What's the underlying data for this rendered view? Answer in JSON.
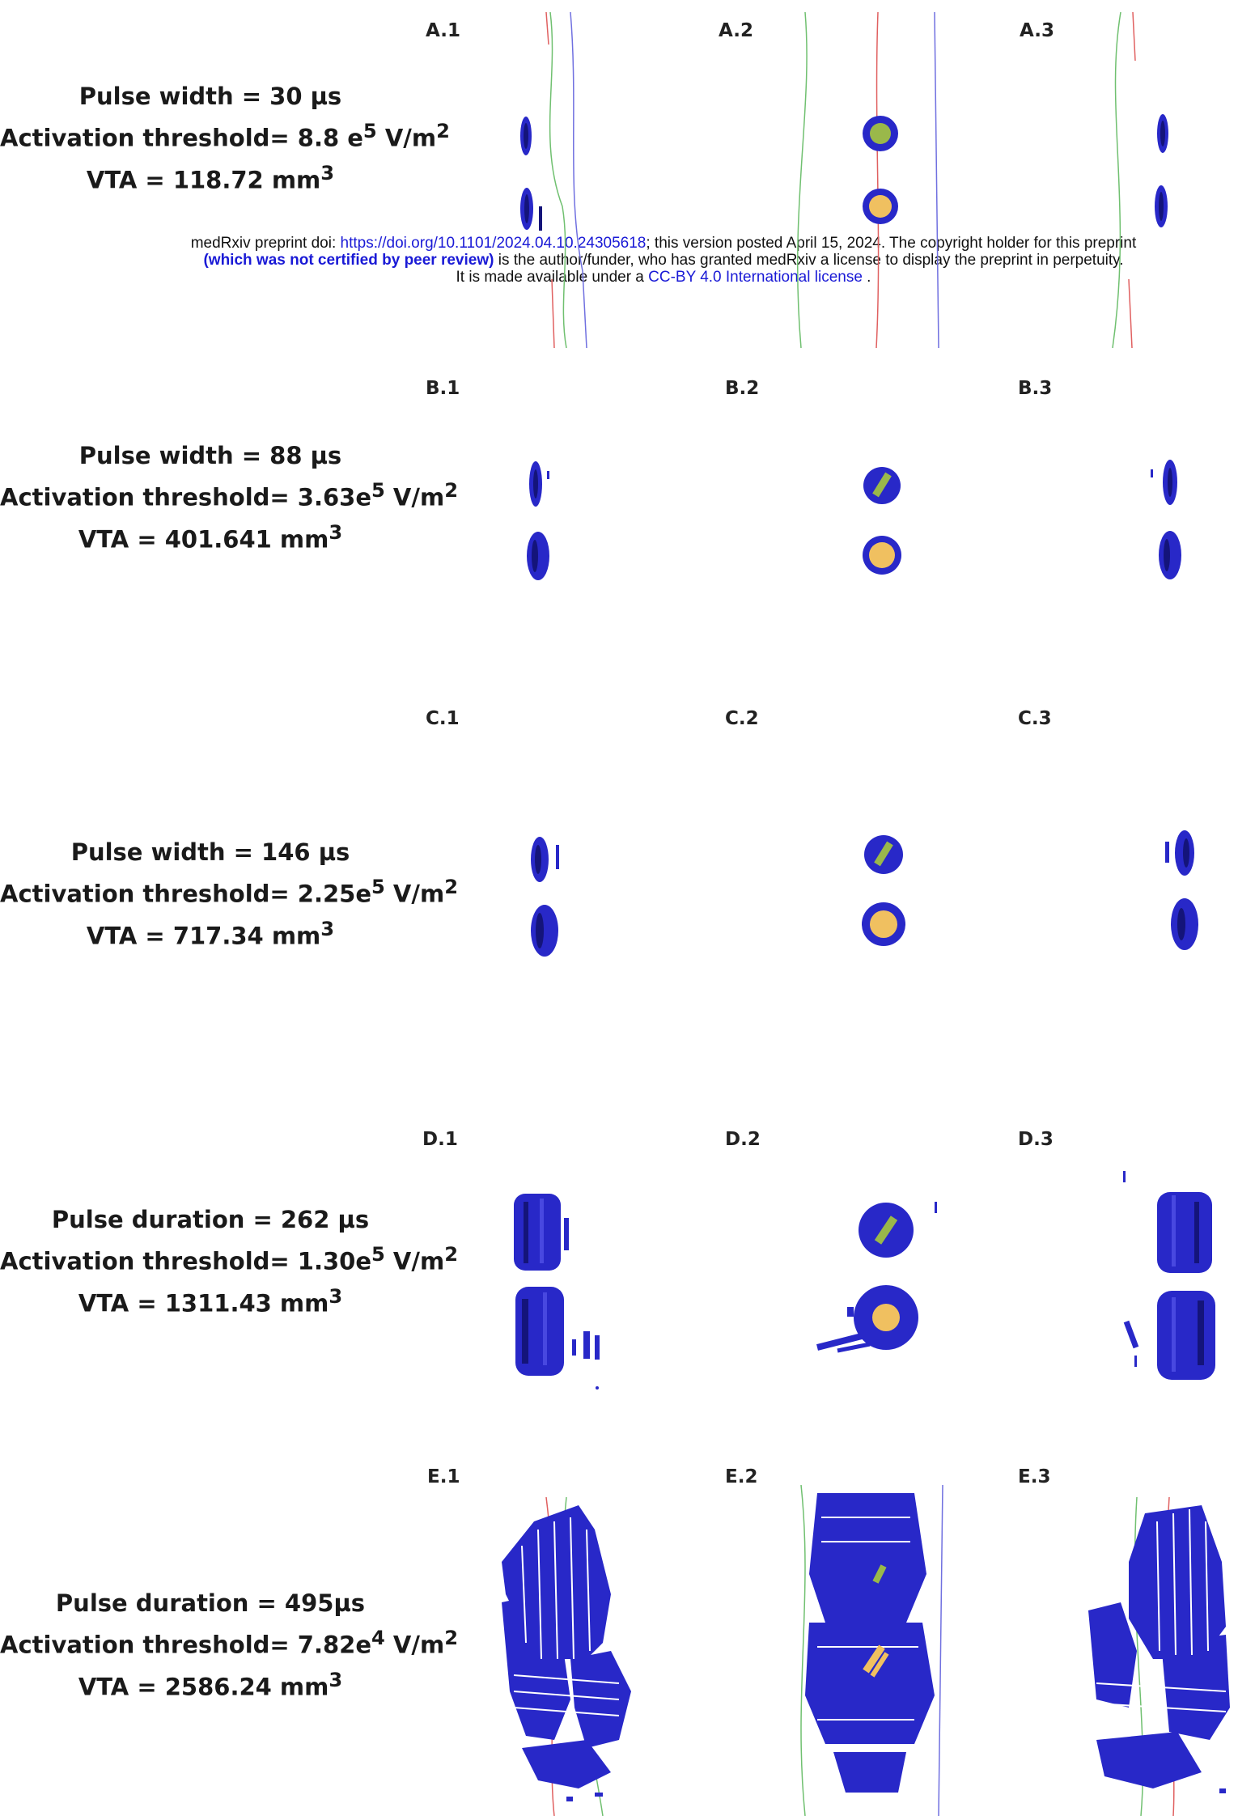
{
  "notice": {
    "line1_prefix": "medRxiv preprint doi: ",
    "line1_link": "https://doi.org/10.1101/2024.04.10.24305618",
    "line1_suffix": "; this version posted April 15, 2024. The copyright holder for this preprint",
    "line2_bold": "(which was not certified by peer review)",
    "line2_rest": " is the author/funder, who has granted medRxiv a license to display the preprint in perpetuity.",
    "line3_prefix": "It is made available under a ",
    "line3_link": "CC-BY 4.0 International license",
    "line3_suffix": " ."
  },
  "rows": [
    {
      "id": "A",
      "line1": "Pulse width = 30 µs",
      "line2_a": "Activation threshold= 8.8 e",
      "line2_exp": "5",
      "line2_b": " V/m",
      "line2_sq": "2",
      "line3_a": "VTA = 118.72 mm",
      "line3_sq": "3",
      "labels": [
        "A.1",
        "A.2",
        "A.3"
      ]
    },
    {
      "id": "B",
      "line1": "Pulse width = 88 µs",
      "line2_a": "Activation threshold= 3.63e",
      "line2_exp": "5",
      "line2_b": " V/m",
      "line2_sq": "2",
      "line3_a": "VTA = 401.641 mm",
      "line3_sq": "3",
      "labels": [
        "B.1",
        "B.2",
        "B.3"
      ]
    },
    {
      "id": "C",
      "line1": "Pulse width = 146 µs",
      "line2_a": "Activation threshold= 2.25e",
      "line2_exp": "5",
      "line2_b": " V/m",
      "line2_sq": "2",
      "line3_a": "VTA = 717.34 mm",
      "line3_sq": "3",
      "labels": [
        "C.1",
        "C.2",
        "C.3"
      ]
    },
    {
      "id": "D",
      "line1": "Pulse duration = 262 µs",
      "line2_a": "Activation threshold= 1.30e",
      "line2_exp": "5",
      "line2_b": " V/m",
      "line2_sq": "2",
      "line3_a": "VTA = 1311.43 mm",
      "line3_sq": "3",
      "labels": [
        "D.1",
        "D.2",
        "D.3"
      ]
    },
    {
      "id": "E",
      "line1": "Pulse duration = 495µs",
      "line2_a": "Activation threshold= 7.82e",
      "line2_exp": "4",
      "line2_b": " V/m",
      "line2_sq": "2",
      "line3_a": "VTA = 2586.24 mm",
      "line3_sq": "3",
      "labels": [
        "E.1",
        "E.2",
        "E.3"
      ]
    }
  ],
  "colors": {
    "vta_blue": "#2828c8",
    "vta_dark": "#14147a",
    "electrode_gold": "#f0c060",
    "electrode_green": "#9ab84a",
    "trace_red": "#e06060",
    "trace_green": "#70c070",
    "trace_blue": "#7070e0"
  },
  "icons": [
    "vta-volume-icon",
    "electrode-contact-icon"
  ]
}
